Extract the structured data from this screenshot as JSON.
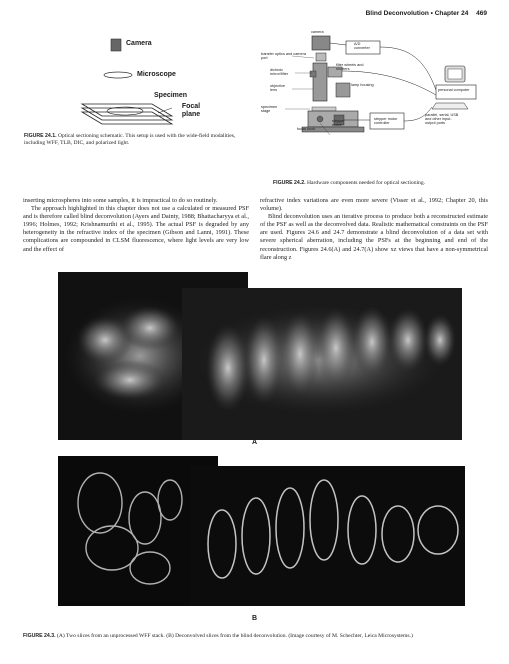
{
  "header": {
    "running_title": "Blind Deconvolution",
    "chapter": "Chapter 24",
    "page_number": "469"
  },
  "fig241": {
    "labels": {
      "camera": "Camera",
      "microscope": "Microscope",
      "specimen": "Specimen",
      "focal_plane": "Focal plane"
    },
    "caption_label": "FIGURE 24.1.",
    "caption_text": "Optical sectioning schematic. This setup is used with the wide-field modalities, including WFF, TLB, DIC, and polarized light."
  },
  "fig242": {
    "labels": {
      "camera": "camera",
      "ad_converter": "A/D converter",
      "transfer_optics": "transfer optics and camera port",
      "filter_wheels": "filter wheels and shutters",
      "dichroic": "dichroic mirror/filter",
      "objective_lens": "objective lens",
      "lamp_housing": "lamp housing",
      "personal_computer": "personal computer",
      "specimen_stage": "specimen stage",
      "stepper_motor": "stepper motor",
      "stepper_motor_controller": "stepper motor controller",
      "focus_knob": "focus knob",
      "ports": "parallel, serial, USB and other input-output ports"
    },
    "caption_label": "FIGURE 24.2.",
    "caption_text": "Hardware components needed for optical sectioning."
  },
  "body_left": [
    "inserting microspheres into some samples, it is impractical to do so routinely.",
    "The approach highlighted in this chapter does not use a calculated or measured PSF and is therefore called blind deconvolution (Ayers and Dainty, 1988; Bhattacharyya et al., 1996; Holmes, 1992; Krishnamurthi et al., 1995). The actual PSF is degraded by any heterogeneity in the refractive index of the specimen (Gibson and Lanni, 1991). These complications are compounded in CLSM fluorescence, where light levels are very low and the effect of"
  ],
  "body_right": [
    "refractive index variations are even more severe (Visser et al., 1992; Chapter 20, this volume).",
    "Blind deconvolution uses an iterative process to produce both a reconstructed estimate of the PSF as well as the deconvolved data. Realistic mathematical constraints on the PSF are used. Figures 24.6 and 24.7 demonstrate a blind deconvolution of a data set with severe spherical aberration, including the PSFs at the beginning and end of the reconstruction. Figures 24.6(A) and 24.7(A) show xz views that have a non-symmetrical flare along z"
  ],
  "fig243": {
    "panel_a": "A",
    "panel_b": "B",
    "caption_label": "FIGURE 24.3.",
    "caption_text": "(A) Two slices from an unprocessed WFF stack. (B) Deconvolved slices from the blind deconvolution. (Image courtesy of M. Schechter, Leica Microsystems.)"
  }
}
